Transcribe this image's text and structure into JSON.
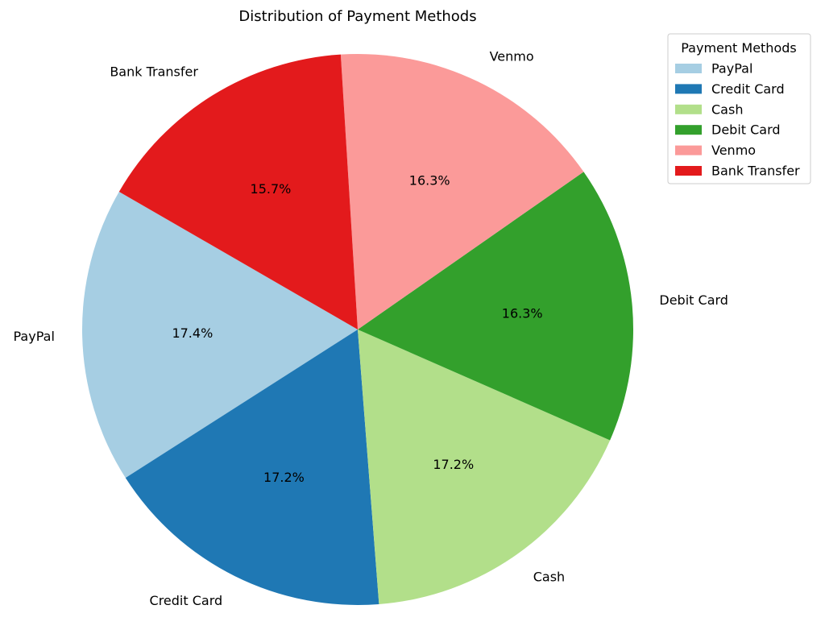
{
  "chart_data": {
    "type": "pie",
    "title": "Distribution of Payment Methods",
    "categories": [
      "PayPal",
      "Credit Card",
      "Cash",
      "Debit Card",
      "Venmo",
      "Bank Transfer"
    ],
    "values": [
      17.4,
      17.2,
      17.2,
      16.3,
      16.3,
      15.7
    ],
    "percent_labels": [
      "17.4%",
      "17.2%",
      "17.2%",
      "16.3%",
      "16.3%",
      "15.7%"
    ],
    "colors": [
      "#a6cee3",
      "#1f78b4",
      "#b2df8a",
      "#33a02c",
      "#fb9a99",
      "#e31a1c"
    ],
    "start_angle_deg": 150,
    "direction": "counterclockwise",
    "legend": {
      "title": "Payment Methods",
      "placement": "top-right",
      "entries": [
        "PayPal",
        "Credit Card",
        "Cash",
        "Debit Card",
        "Venmo",
        "Bank Transfer"
      ]
    }
  }
}
